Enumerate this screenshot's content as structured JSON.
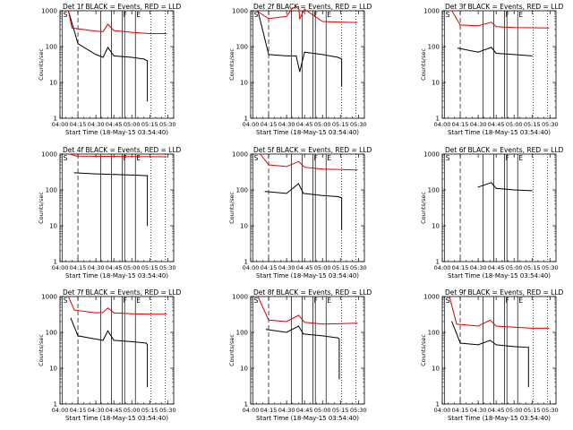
{
  "figure": {
    "background": "#ffffff",
    "axis_color": "#000000",
    "events_color": "#000000",
    "lld_color": "#e00000",
    "ylabel": "Counts/sec",
    "xlabel": "Start Time (18-May-15 03:54:40)",
    "yticks": [
      "1",
      "10",
      "100",
      "1000"
    ],
    "xticks": [
      "04:00",
      "04:15",
      "04:30",
      "04:45",
      "05:00",
      "05:15",
      "05:30"
    ],
    "markers": [
      {
        "label": "S",
        "time": "04:02",
        "style": "solid"
      },
      {
        "label": "",
        "time": "04:15",
        "style": "dashed"
      },
      {
        "label": "",
        "time": "04:34",
        "style": "solid"
      },
      {
        "label": "",
        "time": "04:43",
        "style": "solid"
      },
      {
        "label": "F",
        "time": "04:52",
        "style": "solid"
      },
      {
        "label": "",
        "time": "04:54",
        "style": "solid"
      },
      {
        "label": "E",
        "time": "05:03",
        "style": "solid"
      },
      {
        "label": "",
        "time": "05:16",
        "style": "dotted"
      },
      {
        "label": "",
        "time": "05:28",
        "style": "dotted"
      }
    ]
  },
  "chart_data": [
    {
      "type": "line",
      "title": "Det 1f BLACK = Events, RED = LLD",
      "x_range": [
        "04:00",
        "05:35"
      ],
      "ylim": [
        1,
        1000
      ],
      "yscale": "log",
      "xlabel": "Start Time (18-May-15 03:54:40)",
      "ylabel": "Counts/sec",
      "series": [
        {
          "name": "Events",
          "color": "#000000",
          "x": [
            "04:07",
            "04:15",
            "04:30",
            "04:36",
            "04:40",
            "04:45",
            "05:00",
            "05:10",
            "05:13",
            "05:13"
          ],
          "values": [
            1000,
            120,
            60,
            50,
            95,
            55,
            50,
            45,
            40,
            3
          ]
        },
        {
          "name": "LLD",
          "color": "#e00000",
          "x": [
            "04:07",
            "04:10",
            "04:30",
            "04:36",
            "04:40",
            "04:45",
            "05:00",
            "05:15",
            "05:29"
          ],
          "values": [
            1000,
            330,
            270,
            260,
            420,
            280,
            250,
            230,
            230
          ]
        }
      ]
    },
    {
      "type": "line",
      "title": "Det 2f BLACK = Events, RED = LLD",
      "x_range": [
        "04:00",
        "05:35"
      ],
      "ylim": [
        1,
        1000
      ],
      "yscale": "log",
      "xlabel": "Start Time (18-May-15 03:54:40)",
      "ylabel": "Counts/sec",
      "series": [
        {
          "name": "Events",
          "color": "#000000",
          "x": [
            "04:06",
            "04:15",
            "04:30",
            "04:38",
            "04:41",
            "04:45",
            "05:00",
            "05:13",
            "05:16",
            "05:16"
          ],
          "values": [
            1000,
            60,
            55,
            55,
            20,
            70,
            60,
            50,
            45,
            8
          ]
        },
        {
          "name": "LLD",
          "color": "#e00000",
          "x": [
            "04:05",
            "04:15",
            "04:30",
            "04:35",
            "04:40",
            "04:41",
            "04:45",
            "05:00",
            "05:15",
            "05:29"
          ],
          "values": [
            1000,
            600,
            700,
            1200,
            1300,
            600,
            1100,
            500,
            480,
            470
          ]
        }
      ]
    },
    {
      "type": "line",
      "title": "Det 3f BLACK = Events, RED = LLD",
      "x_range": [
        "04:00",
        "05:35"
      ],
      "ylim": [
        1,
        1000
      ],
      "yscale": "log",
      "xlabel": "Start Time (18-May-15 03:54:40)",
      "ylabel": "Counts/sec",
      "series": [
        {
          "name": "Events",
          "color": "#000000",
          "x": [
            "04:13",
            "04:30",
            "04:41",
            "04:45",
            "05:00",
            "05:15"
          ],
          "values": [
            90,
            70,
            95,
            65,
            60,
            55
          ]
        },
        {
          "name": "LLD",
          "color": "#e00000",
          "x": [
            "04:08",
            "04:15",
            "04:30",
            "04:41",
            "04:45",
            "05:00",
            "05:29"
          ],
          "values": [
            1000,
            400,
            380,
            480,
            360,
            340,
            330
          ]
        }
      ]
    },
    {
      "type": "line",
      "title": "Det 4f BLACK = Events, RED = LLD",
      "x_range": [
        "04:00",
        "05:35"
      ],
      "ylim": [
        1,
        1000
      ],
      "yscale": "log",
      "xlabel": "Start Time (18-May-15 03:54:40)",
      "ylabel": "Counts/sec",
      "series": [
        {
          "name": "Events",
          "color": "#000000",
          "x": [
            "04:12",
            "04:30",
            "04:45",
            "05:00",
            "05:13",
            "05:13"
          ],
          "values": [
            300,
            280,
            270,
            260,
            250,
            10
          ]
        },
        {
          "name": "LLD",
          "color": "#e00000",
          "x": [
            "04:08",
            "04:14",
            "04:30",
            "04:45",
            "05:00",
            "05:29"
          ],
          "values": [
            1000,
            880,
            870,
            860,
            850,
            840
          ]
        }
      ]
    },
    {
      "type": "line",
      "title": "Det 5f BLACK = Events, RED = LLD",
      "x_range": [
        "04:00",
        "05:35"
      ],
      "ylim": [
        1,
        1000
      ],
      "yscale": "log",
      "xlabel": "Start Time (18-May-15 03:54:40)",
      "ylabel": "Counts/sec",
      "series": [
        {
          "name": "Events",
          "color": "#000000",
          "x": [
            "04:12",
            "04:30",
            "04:40",
            "04:44",
            "05:00",
            "05:13",
            "05:16",
            "05:16"
          ],
          "values": [
            90,
            80,
            150,
            80,
            70,
            65,
            60,
            8
          ]
        },
        {
          "name": "LLD",
          "color": "#e00000",
          "x": [
            "04:08",
            "04:15",
            "04:30",
            "04:40",
            "04:45",
            "05:00",
            "05:29"
          ],
          "values": [
            1000,
            500,
            450,
            620,
            430,
            380,
            360
          ]
        }
      ]
    },
    {
      "type": "line",
      "title": "Det 6f BLACK = Events, RED = LLD",
      "x_range": [
        "04:00",
        "05:35"
      ],
      "ylim": [
        1,
        1000
      ],
      "yscale": "log",
      "xlabel": "Start Time (18-May-15 03:54:40)",
      "ylabel": "Counts/sec",
      "series": [
        {
          "name": "Events",
          "color": "#000000",
          "x": [
            "04:30",
            "04:41",
            "04:45",
            "05:00",
            "05:15"
          ],
          "values": [
            120,
            160,
            110,
            100,
            95
          ]
        }
      ]
    },
    {
      "type": "line",
      "title": "Det 7f BLACK = Events, RED = LLD",
      "x_range": [
        "04:00",
        "05:35"
      ],
      "ylim": [
        1,
        1000
      ],
      "yscale": "log",
      "xlabel": "Start Time (18-May-15 03:54:40)",
      "ylabel": "Counts/sec",
      "series": [
        {
          "name": "Events",
          "color": "#000000",
          "x": [
            "04:09",
            "04:15",
            "04:30",
            "04:36",
            "04:40",
            "04:45",
            "05:00",
            "05:12",
            "05:13",
            "05:13"
          ],
          "values": [
            250,
            80,
            65,
            60,
            110,
            60,
            55,
            50,
            45,
            3
          ]
        },
        {
          "name": "LLD",
          "color": "#e00000",
          "x": [
            "04:07",
            "04:12",
            "04:30",
            "04:36",
            "04:40",
            "04:45",
            "05:00",
            "05:15",
            "05:29"
          ],
          "values": [
            1000,
            420,
            350,
            360,
            480,
            350,
            330,
            320,
            320
          ]
        }
      ]
    },
    {
      "type": "line",
      "title": "Det 8f BLACK = Events, RED = LLD",
      "x_range": [
        "04:00",
        "05:35"
      ],
      "ylim": [
        1,
        1000
      ],
      "yscale": "log",
      "xlabel": "Start Time (18-May-15 03:54:40)",
      "ylabel": "Counts/sec",
      "series": [
        {
          "name": "Events",
          "color": "#000000",
          "x": [
            "04:13",
            "04:30",
            "04:40",
            "04:44",
            "05:00",
            "05:13",
            "05:14",
            "05:14"
          ],
          "values": [
            120,
            100,
            150,
            90,
            80,
            70,
            65,
            5
          ]
        },
        {
          "name": "LLD",
          "color": "#e00000",
          "x": [
            "04:06",
            "04:15",
            "04:30",
            "04:40",
            "04:45",
            "05:00",
            "05:29"
          ],
          "values": [
            1000,
            220,
            200,
            300,
            190,
            170,
            180
          ]
        }
      ]
    },
    {
      "type": "line",
      "title": "Det 9f BLACK = Events, RED = LLD",
      "x_range": [
        "04:00",
        "05:35"
      ],
      "ylim": [
        1,
        1000
      ],
      "yscale": "log",
      "xlabel": "Start Time (18-May-15 03:54:40)",
      "ylabel": "Counts/sec",
      "series": [
        {
          "name": "Events",
          "color": "#000000",
          "x": [
            "04:08",
            "04:15",
            "04:30",
            "04:40",
            "04:45",
            "05:00",
            "05:12",
            "05:12"
          ],
          "values": [
            200,
            50,
            45,
            60,
            45,
            40,
            38,
            3
          ]
        },
        {
          "name": "LLD",
          "color": "#e00000",
          "x": [
            "04:06",
            "04:12",
            "04:30",
            "04:40",
            "04:45",
            "05:00",
            "05:15",
            "05:29"
          ],
          "values": [
            1000,
            170,
            150,
            220,
            150,
            140,
            130,
            130
          ]
        }
      ]
    }
  ]
}
